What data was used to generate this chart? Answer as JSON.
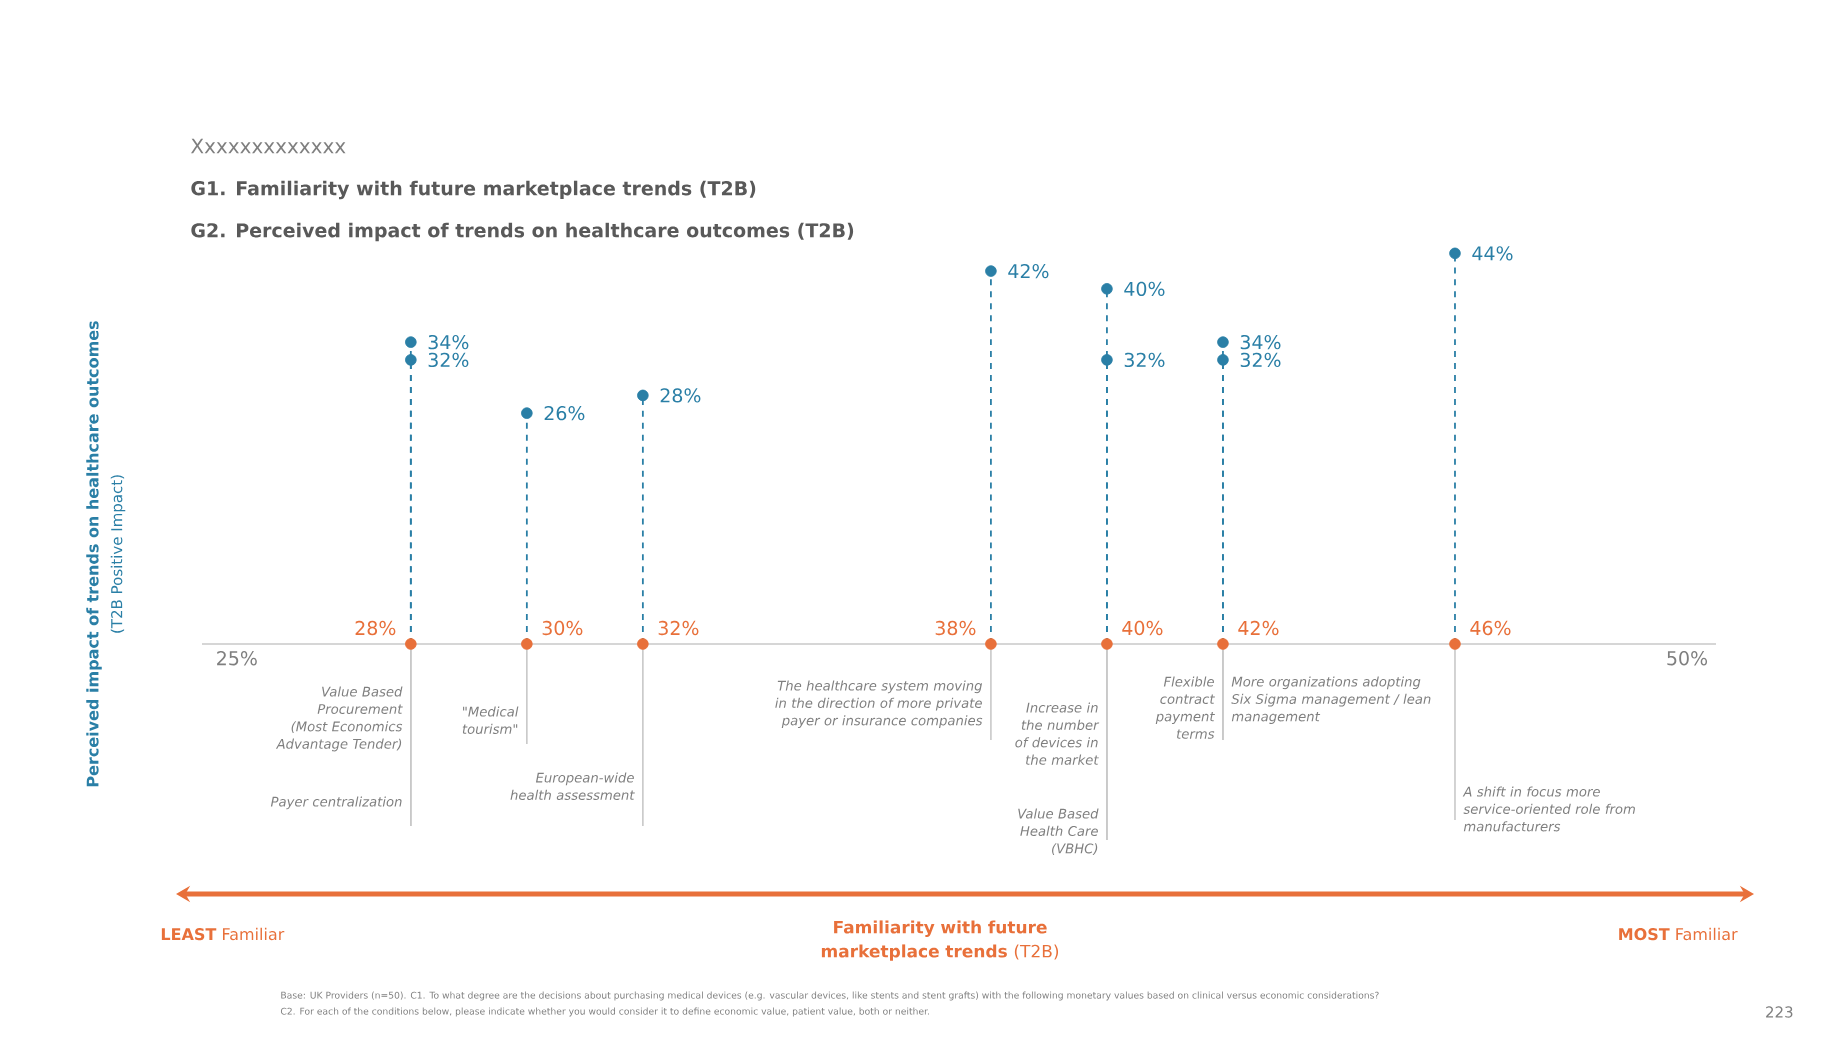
{
  "chart_data": {
    "type": "lollipop",
    "title": "G1. Familiarity with future marketplace trends (T2B)",
    "subtitle": "G2. Perceived impact of trends on healthcare outcomes (T2B)",
    "xlim": [
      24.4,
      50.5
    ],
    "xticks": [
      {
        "value": 25,
        "label": "25%"
      },
      {
        "value": 50,
        "label": "50%"
      }
    ],
    "tick_labels": "x",
    "marker": "circle",
    "line_style": "dashed",
    "grid": false,
    "series": [
      {
        "color": "#2a7fa6",
        "x": [
          28,
          28,
          30,
          32,
          38,
          40,
          40,
          42,
          42,
          46
        ],
        "values": [
          34,
          32,
          26,
          28,
          42,
          40,
          32,
          34,
          32,
          44
        ],
        "value_labels": [
          "34%",
          "32%",
          "26%",
          "28%",
          "42%",
          "40%",
          "32%",
          "34%",
          "32%",
          "44%"
        ]
      },
      {
        "type": "scatter",
        "color": "#e8703a",
        "x": [
          28,
          30,
          32,
          38,
          40,
          42,
          46
        ],
        "values": [
          0,
          0,
          0,
          0,
          0,
          0,
          0
        ]
      }
    ],
    "annotations": [
      "Xxxxxxxxxxxxx",
      "Perceived impact of trends on healthcare outcomes",
      "(T2B Positive Impact)",
      "**LEAST** Familiar",
      "**MOST** Familiar",
      "**Familiarity with future marketplace trends** (T2B)",
      "Base: UK Providers (n=50). C1. To what degree are the decisions about purchasing medical devices (e.g. vascular devices, like stents and stent grafts) with the following monetary values based on clinical versus economic considerations?",
      "C2. For each of the conditions below, please indicate whether you would consider it to define economic value, patient value, both or neither.",
      "223",
      {
        "text": "28%",
        "x": 28,
        "y": 0
      },
      {
        "text": "30%",
        "x": 30,
        "y": 0
      },
      {
        "text": "32%",
        "x": 32,
        "y": 0
      },
      {
        "text": "38%",
        "x": 38,
        "y": 0
      },
      {
        "text": "40%",
        "x": 40,
        "y": 0
      },
      {
        "text": "42%",
        "x": 42,
        "y": 0
      },
      {
        "text": "46%",
        "x": 46,
        "y": 0
      },
      "Value Based Procurement (Most Economics Advantage Tender)",
      "Payer centralization",
      "\"Medical tourism\"",
      "European-wide health assessment",
      "The healthcare system moving in the direction of more private payer or insurance companies",
      "Increase in the number of devices in the market",
      "Value Based Health Care (VBHC)",
      "Flexible contract payment terms",
      "More organizations adopting Six Sigma management / lean management",
      "A shift in focus more service-oriented role from manufacturers"
    ]
  }
}
